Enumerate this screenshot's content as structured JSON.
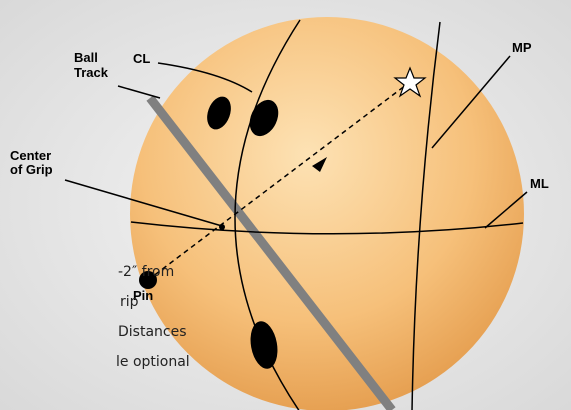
{
  "labels": {
    "ball_track": [
      "Ball",
      "Track"
    ],
    "cl": "CL",
    "mp": "MP",
    "center_of_grip": [
      "Center",
      "of Grip"
    ],
    "ml": "ML",
    "pin": "Pin"
  },
  "side_text": [
    "-2″ from",
    "rip",
    "Distances",
    "le optional"
  ]
}
